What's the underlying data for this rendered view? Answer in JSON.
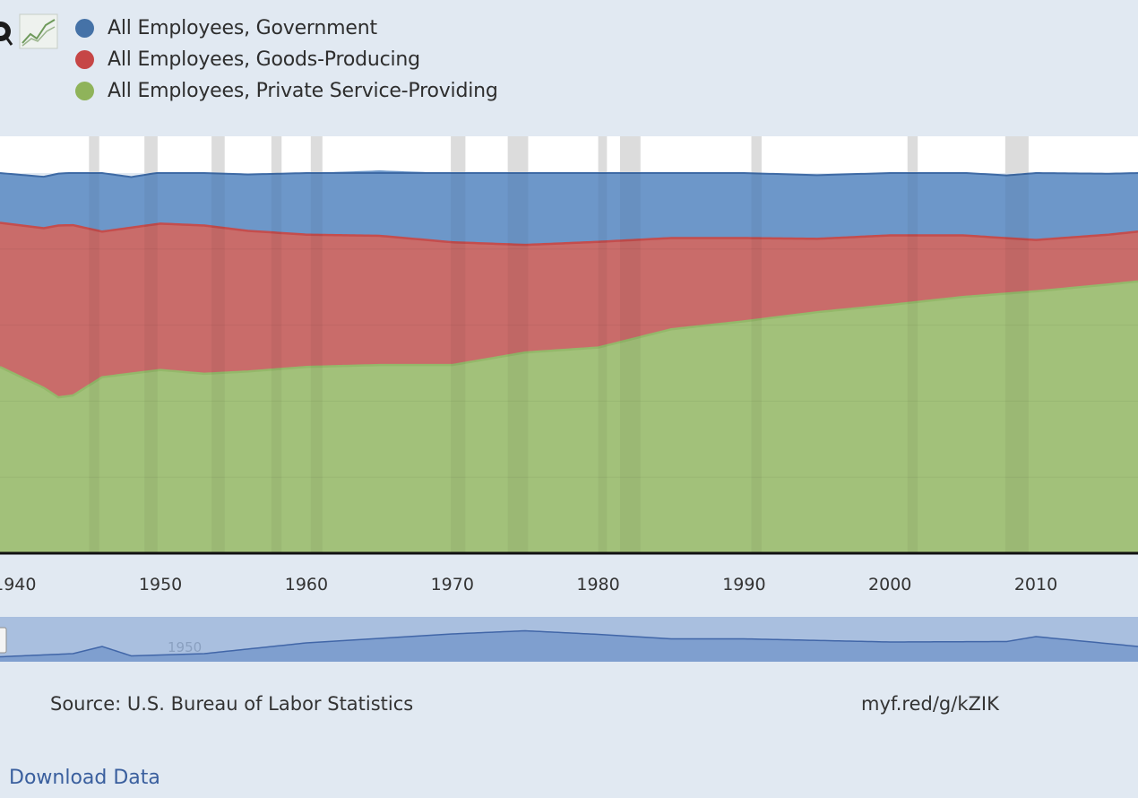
{
  "legend": [
    {
      "label": "All Employees, Government",
      "color": "#4572a7"
    },
    {
      "label": "All Employees, Goods-Producing",
      "color": "#c64646"
    },
    {
      "label": "All Employees, Private Service-Providing",
      "color": "#8fb35a"
    }
  ],
  "toolbar": {
    "icons": [
      "zoom-icon",
      "line-chart-icon"
    ]
  },
  "source": "Source: U.S. Bureau of Labor Statistics",
  "short_url": "myf.red/g/kZIK",
  "download_label": "Download Data",
  "navigator": {
    "tick_label": "1950"
  },
  "chart_data": {
    "type": "area",
    "stacking": "percent",
    "xlim": [
      1939,
      2017
    ],
    "x_ticks": [
      1940,
      1950,
      1960,
      1970,
      1980,
      1990,
      2000,
      2010
    ],
    "x_tick_labels": [
      "1940",
      "1950",
      "1960",
      "1970",
      "1980",
      "1990",
      "2000",
      "2010"
    ],
    "ylim": [
      0,
      100
    ],
    "recession_bands": [
      [
        1945.1,
        1945.8
      ],
      [
        1948.9,
        1949.8
      ],
      [
        1953.5,
        1954.4
      ],
      [
        1957.6,
        1958.3
      ],
      [
        1960.3,
        1961.1
      ],
      [
        1969.9,
        1970.9
      ],
      [
        1973.8,
        1975.2
      ],
      [
        1980.0,
        1980.6
      ],
      [
        1981.5,
        1982.9
      ],
      [
        1990.5,
        1991.2
      ],
      [
        2001.2,
        2001.9
      ],
      [
        2007.9,
        2009.5
      ]
    ],
    "series": [
      {
        "name": "All Employees, Government",
        "color": "#4572a7",
        "x": [
          1939,
          1944,
          1946,
          1948,
          1953,
          1960,
          1970,
          1975,
          1980,
          1985,
          1990,
          2000,
          2008,
          2010,
          2017
        ],
        "y": [
          13.1,
          13.8,
          15.4,
          13.3,
          13.8,
          16.2,
          18.2,
          18.9,
          18.1,
          17.1,
          17.1,
          16.4,
          16.5,
          17.6,
          15.4
        ]
      },
      {
        "name": "All Employees, Goods-Producing",
        "color": "#c64646",
        "x": [
          1939,
          1942,
          1943,
          1944,
          1946,
          1950,
          1953,
          1956,
          1960,
          1965,
          1970,
          1975,
          1980,
          1985,
          1990,
          1995,
          2000,
          2005,
          2010,
          2015,
          2017
        ],
        "y": [
          37.9,
          42.0,
          45.2,
          44.8,
          38.3,
          38.5,
          39.0,
          37.0,
          34.8,
          34.0,
          32.3,
          28.3,
          27.8,
          24.0,
          21.9,
          19.3,
          18.3,
          16.2,
          13.5,
          13.1,
          13.1
        ]
      },
      {
        "name": "All Employees, Private Service-Providing",
        "color": "#9bbf71",
        "x": [
          1939,
          1942,
          1943,
          1944,
          1946,
          1950,
          1953,
          1956,
          1960,
          1965,
          1970,
          1975,
          1980,
          1985,
          1990,
          1995,
          2000,
          2005,
          2010,
          2015,
          2017
        ],
        "y": [
          49.0,
          43.5,
          41.0,
          41.5,
          46.3,
          48.2,
          47.2,
          47.8,
          49.0,
          49.5,
          49.5,
          52.8,
          54.1,
          58.9,
          61.0,
          63.4,
          65.3,
          67.4,
          68.9,
          70.7,
          71.5
        ]
      }
    ]
  }
}
